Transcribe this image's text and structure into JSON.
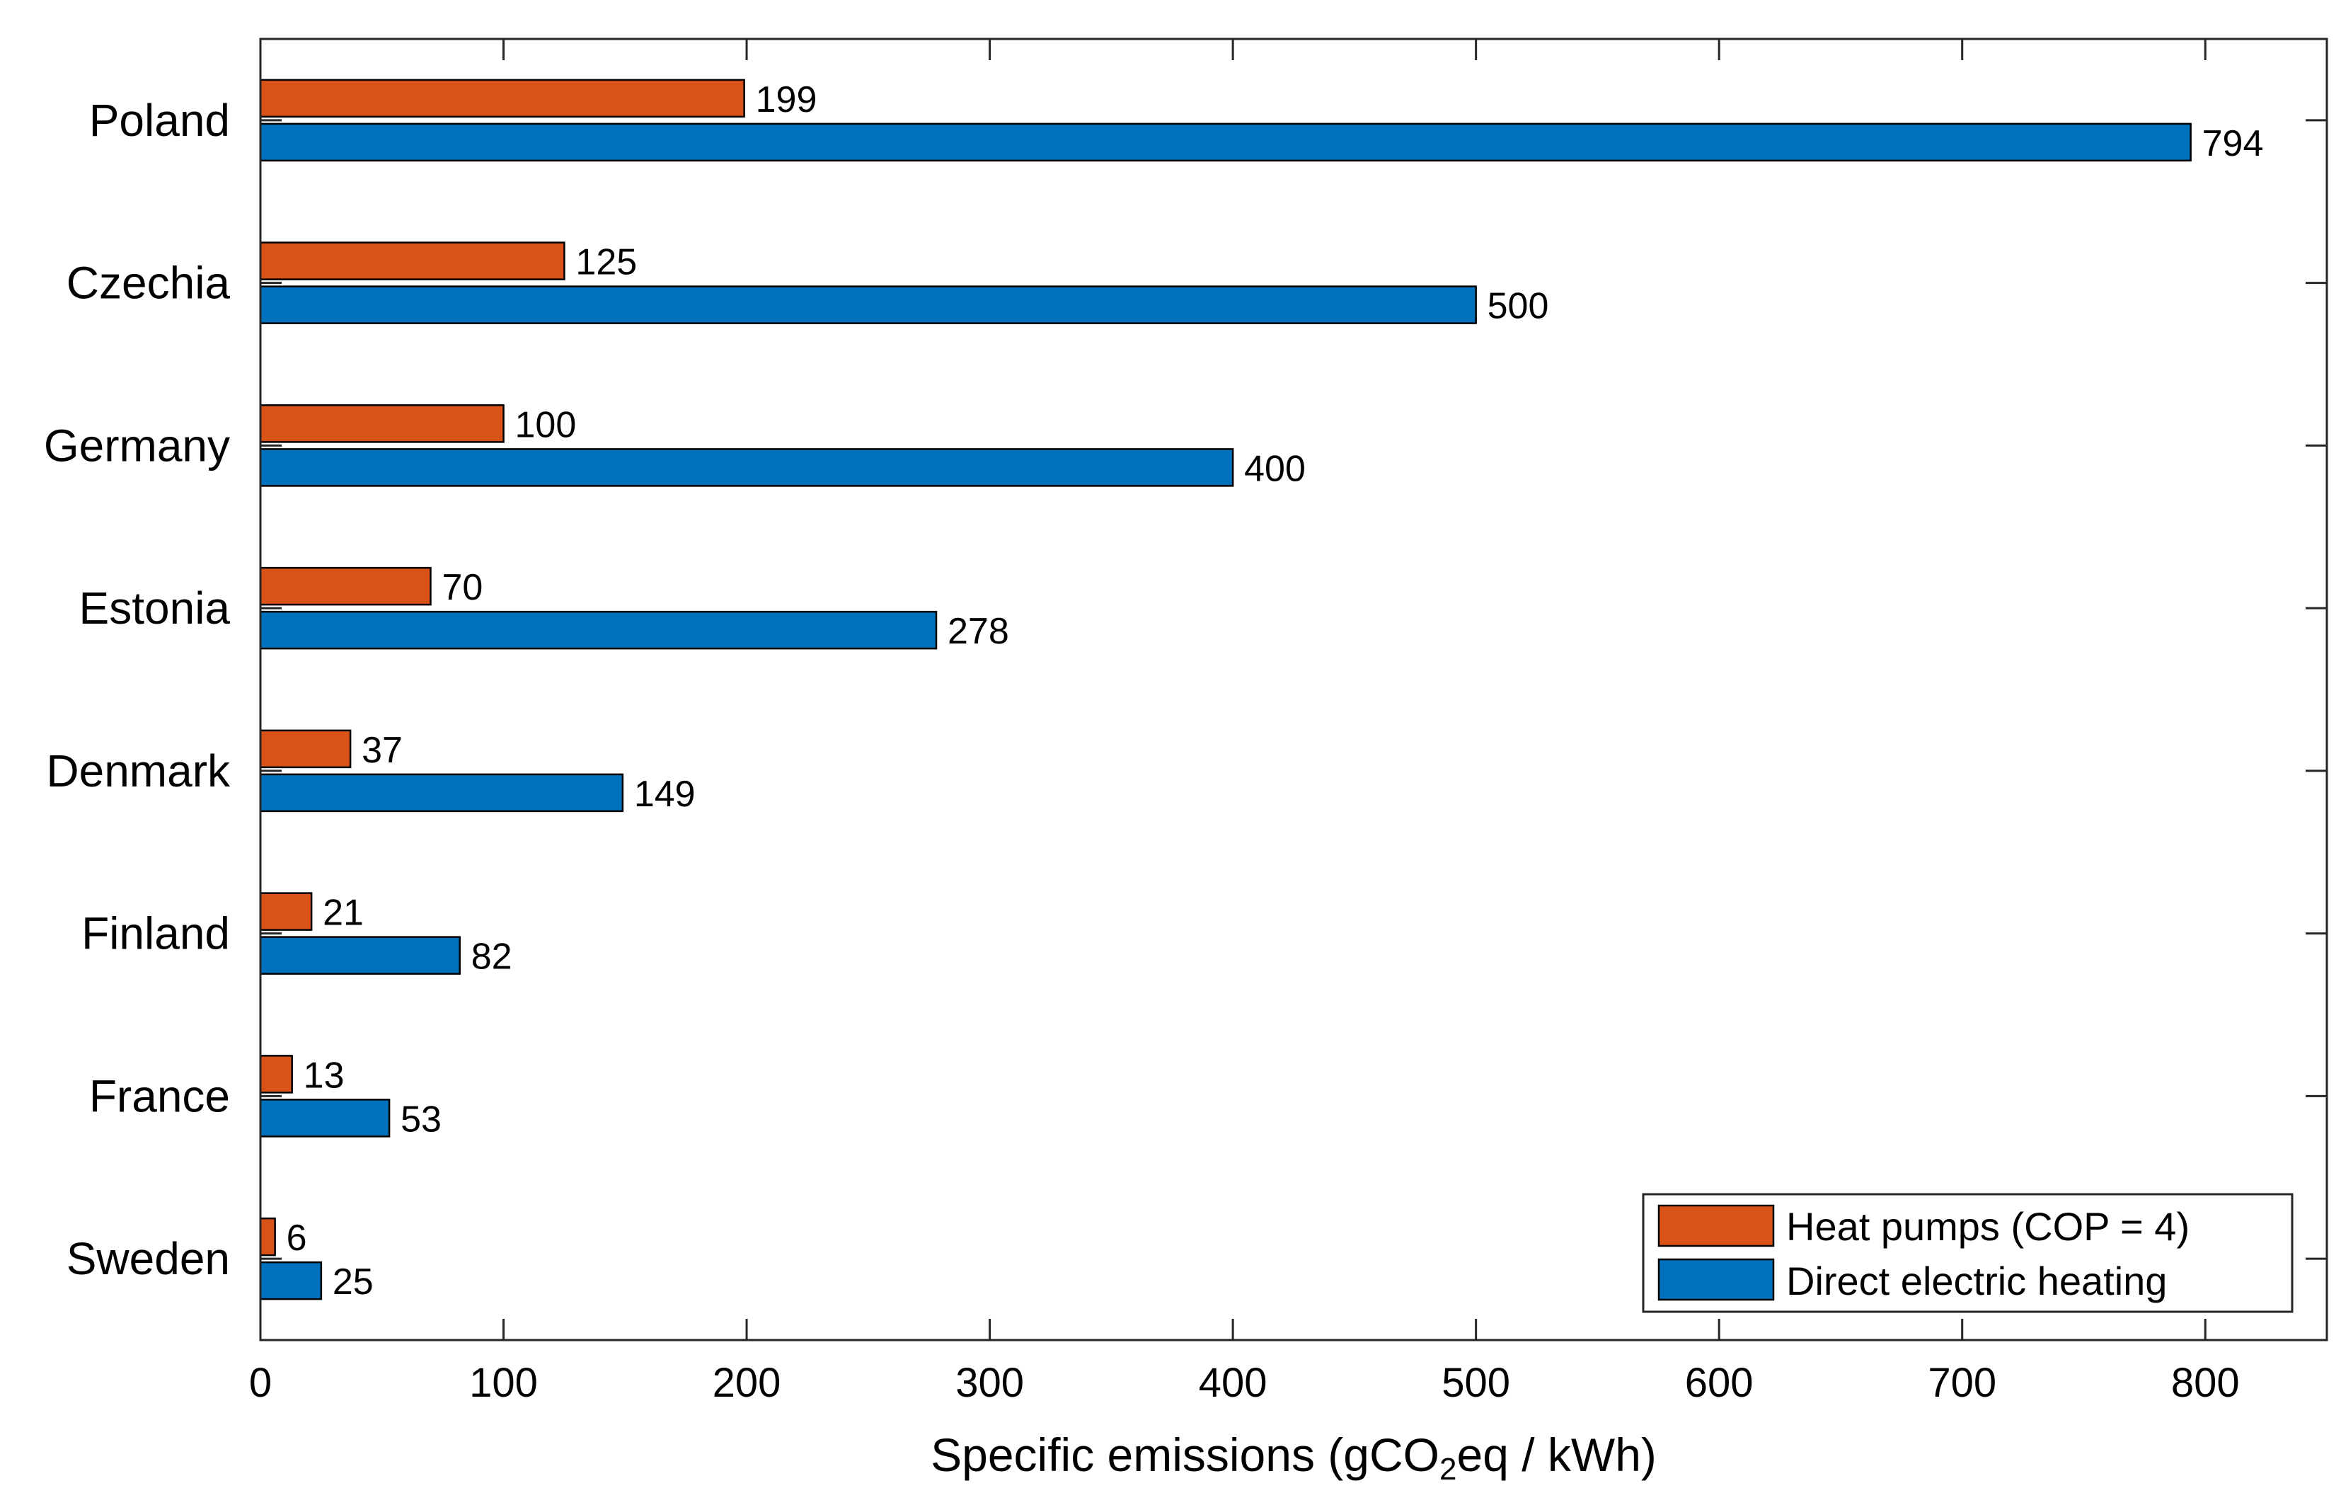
{
  "chart_data": {
    "type": "bar",
    "orientation": "horizontal",
    "title": "",
    "categories": [
      "Poland",
      "Czechia",
      "Germany",
      "Estonia",
      "Denmark",
      "Finland",
      "France",
      "Sweden"
    ],
    "series": [
      {
        "name": "Heat pumps (COP = 4)",
        "color": "#D95319",
        "values": [
          199,
          125,
          100,
          70,
          37,
          21,
          13,
          6
        ]
      },
      {
        "name": "Direct electric heating",
        "color": "#0072BD",
        "values": [
          794,
          500,
          400,
          278,
          149,
          82,
          53,
          25
        ]
      }
    ],
    "xlabel_parts": {
      "before": "Specific emissions (gCO",
      "subscript": "2",
      "after": "eq / kWh)"
    },
    "ylabel": "",
    "xlim": [
      0,
      850
    ],
    "xticks": [
      0,
      100,
      200,
      300,
      400,
      500,
      600,
      700,
      800
    ],
    "grid": false,
    "legend_position": "bottom-right",
    "data_labels": true
  }
}
